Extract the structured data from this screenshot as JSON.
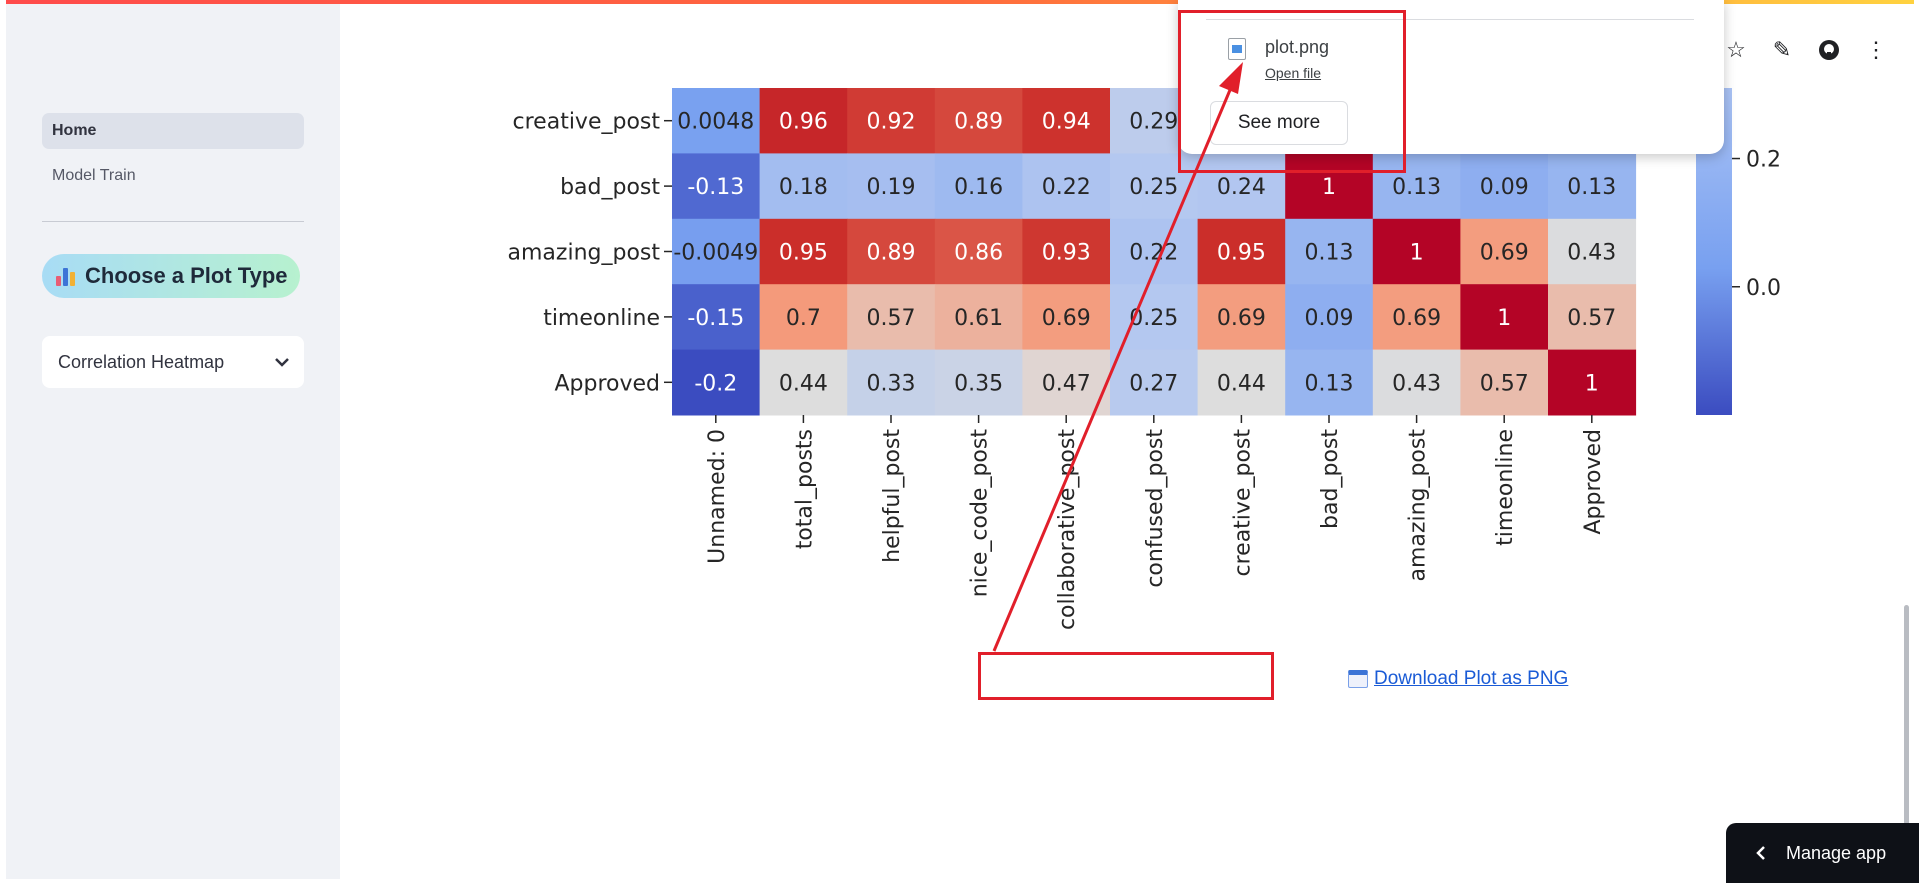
{
  "sidebar": {
    "nav": [
      "Home",
      "Model Train"
    ],
    "plot_type_label": "Choose a Plot Type",
    "plot_select_value": "Correlation Heatmap"
  },
  "download_link": "Download Plot as PNG",
  "download_popup": {
    "file_name": "plot.png",
    "open_file": "Open file",
    "see_more": "See more"
  },
  "manage_app": "Manage app",
  "colors": {
    "accent": "#ff4b4b",
    "annotation_red": "#e11f2a",
    "link_blue": "#1a5bd6"
  },
  "icons": [
    "bar-chart-icon",
    "chevron-down-icon",
    "file-icon",
    "star-icon",
    "pencil-icon",
    "github-icon",
    "kebab-menu-icon",
    "calendar-icon",
    "chevron-left-icon"
  ],
  "chart_data": {
    "type": "heatmap",
    "colormap": "coolwarm",
    "rows": [
      "creative_post",
      "bad_post",
      "amazing_post",
      "timeonline",
      "Approved"
    ],
    "columns": [
      "Unnamed: 0",
      "total_posts",
      "helpful_post",
      "nice_code_post",
      "collaborative_post",
      "confused_post",
      "creative_post",
      "bad_post",
      "amazing_post",
      "timeonline",
      "Approved"
    ],
    "values": [
      [
        0.0048,
        0.96,
        0.92,
        0.89,
        0.94,
        0.29,
        null,
        null,
        null,
        null,
        null
      ],
      [
        -0.13,
        0.18,
        0.19,
        0.16,
        0.22,
        0.25,
        0.24,
        1,
        0.13,
        0.09,
        0.13
      ],
      [
        -0.0049,
        0.95,
        0.89,
        0.86,
        0.93,
        0.22,
        0.95,
        0.13,
        1,
        0.69,
        0.43
      ],
      [
        -0.15,
        0.7,
        0.57,
        0.61,
        0.69,
        0.25,
        0.69,
        0.09,
        0.69,
        1,
        0.57
      ],
      [
        -0.2,
        0.44,
        0.33,
        0.35,
        0.47,
        0.27,
        0.44,
        0.13,
        0.43,
        0.57,
        1
      ]
    ],
    "labels": [
      [
        "0.0048",
        "0.96",
        "0.92",
        "0.89",
        "0.94",
        "0.29",
        "",
        "",
        "",
        "",
        ""
      ],
      [
        "-0.13",
        "0.18",
        "0.19",
        "0.16",
        "0.22",
        "0.25",
        "0.24",
        "1",
        "0.13",
        "0.09",
        "0.13"
      ],
      [
        "-0.0049",
        "0.95",
        "0.89",
        "0.86",
        "0.93",
        "0.22",
        "0.95",
        "0.13",
        "1",
        "0.69",
        "0.43"
      ],
      [
        "-0.15",
        "0.7",
        "0.57",
        "0.61",
        "0.69",
        "0.25",
        "0.69",
        "0.09",
        "0.69",
        "1",
        "0.57"
      ],
      [
        "-0.2",
        "0.44",
        "0.33",
        "0.35",
        "0.47",
        "0.27",
        "0.44",
        "0.13",
        "0.43",
        "0.57",
        "1"
      ]
    ],
    "colorbar_ticks": [
      0.2,
      0.0
    ],
    "colorbar_tick_labels": [
      "0.2",
      "0.0"
    ]
  }
}
